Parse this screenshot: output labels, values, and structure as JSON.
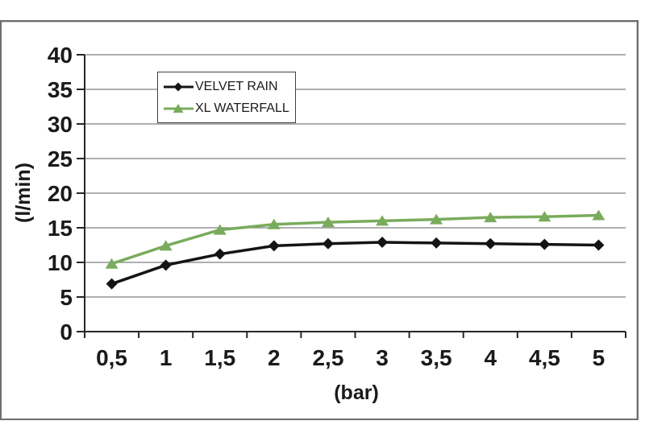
{
  "chart_data": {
    "type": "line",
    "x": [
      0.5,
      1,
      1.5,
      2,
      2.5,
      3,
      3.5,
      4,
      4.5,
      5
    ],
    "x_tick_labels": [
      "0,5",
      "1",
      "1,5",
      "2",
      "2,5",
      "3",
      "3,5",
      "4",
      "4,5",
      "5"
    ],
    "y_tick_labels": [
      "0",
      "5",
      "10",
      "15",
      "20",
      "25",
      "30",
      "35",
      "40"
    ],
    "y_tick_step": 5,
    "ylim": [
      0,
      40
    ],
    "xlabel": "(bar)",
    "ylabel": "(l/min)",
    "grid": "horizontal",
    "legend_position": "inside-top-left",
    "gridline_color": "#7f7f7f",
    "axis_color": "#262626",
    "series": [
      {
        "name": "VELVET RAIN",
        "color": "#141414",
        "marker": "diamond",
        "values": [
          6.9,
          9.6,
          11.2,
          12.4,
          12.7,
          12.9,
          12.8,
          12.7,
          12.6,
          12.5
        ]
      },
      {
        "name": "XL WATERFALL",
        "color": "#79ab5c",
        "marker": "triangle",
        "values": [
          9.8,
          12.4,
          14.7,
          15.5,
          15.8,
          16.0,
          16.2,
          16.5,
          16.6,
          16.8
        ]
      }
    ]
  }
}
